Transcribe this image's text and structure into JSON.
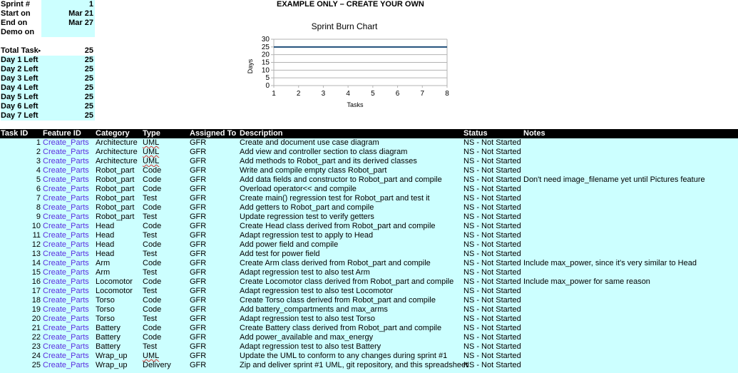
{
  "summary": {
    "sprint_label": "Sprint #",
    "sprint_value": "1",
    "start_label": "Start on",
    "start_value": "Mar 21",
    "end_label": "End on",
    "end_value": "Mar 27",
    "demo_label": "Demo on",
    "demo_value": "",
    "total_label": "Total Task",
    "total_value": "25",
    "days": [
      {
        "label": "Day 1 Left",
        "value": "25"
      },
      {
        "label": "Day 2 Left",
        "value": "25"
      },
      {
        "label": "Day 3 Left",
        "value": "25"
      },
      {
        "label": "Day 4 Left",
        "value": "25"
      },
      {
        "label": "Day 5 Left",
        "value": "25"
      },
      {
        "label": "Day 6 Left",
        "value": "25"
      },
      {
        "label": "Day 7 Left",
        "value": "25"
      }
    ]
  },
  "banner": "EXAMPLE ONLY – CREATE YOUR OWN",
  "chart_data": {
    "type": "line",
    "title": "Sprint Burn Chart",
    "xlabel": "Tasks",
    "ylabel": "Days",
    "x": [
      1,
      2,
      3,
      4,
      5,
      6,
      7,
      8
    ],
    "series": [
      {
        "values": [
          25,
          25,
          25,
          25,
          25,
          25,
          25,
          25
        ],
        "color": "#1f4e79"
      }
    ],
    "xlim": [
      1,
      8
    ],
    "ylim": [
      0,
      30
    ],
    "yticks": [
      0,
      5,
      10,
      15,
      20,
      25,
      30
    ],
    "grid": true
  },
  "table": {
    "headers": {
      "task_id": "Task ID",
      "feature_id": "Feature ID",
      "category": "Category",
      "type": "Type",
      "assigned": "Assigned To",
      "description": "Description",
      "status": "Status",
      "notes": "Notes"
    },
    "rows": [
      {
        "id": "1",
        "feature": "Create_Parts",
        "category": "Architecture",
        "type": "UML",
        "assigned": "GFR",
        "description": "Create and document use case diagram",
        "status": "NS - Not Started",
        "notes": ""
      },
      {
        "id": "2",
        "feature": "Create_Parts",
        "category": "Architecture",
        "type": "UML",
        "assigned": "GFR",
        "description": "Add view and controller section to class diagram",
        "status": "NS - Not Started",
        "notes": ""
      },
      {
        "id": "3",
        "feature": "Create_Parts",
        "category": "Architecture",
        "type": "UML",
        "assigned": "GFR",
        "description": "Add methods to Robot_part and its derived classes",
        "status": "NS - Not Started",
        "notes": ""
      },
      {
        "id": "4",
        "feature": "Create_Parts",
        "category": "Robot_part",
        "type": "Code",
        "assigned": "GFR",
        "description": "Write and compile empty class Robot_part",
        "status": "NS - Not Started",
        "notes": ""
      },
      {
        "id": "5",
        "feature": "Create_Parts",
        "category": "Robot_part",
        "type": "Code",
        "assigned": "GFR",
        "description": "Add data fields and constructor to Robot_part and compile",
        "status": "NS - Not Started",
        "notes": "Don't need image_filename yet until Pictures feature"
      },
      {
        "id": "6",
        "feature": "Create_Parts",
        "category": "Robot_part",
        "type": "Code",
        "assigned": "GFR",
        "description": "Overload operator<< and compile",
        "status": "NS - Not Started",
        "notes": ""
      },
      {
        "id": "7",
        "feature": "Create_Parts",
        "category": "Robot_part",
        "type": "Test",
        "assigned": "GFR",
        "description": "Create main() regression test for Robot_part and test it",
        "status": "NS - Not Started",
        "notes": ""
      },
      {
        "id": "8",
        "feature": "Create_Parts",
        "category": "Robot_part",
        "type": "Code",
        "assigned": "GFR",
        "description": "Add getters to Robot_part and compile",
        "status": "NS - Not Started",
        "notes": ""
      },
      {
        "id": "9",
        "feature": "Create_Parts",
        "category": "Robot_part",
        "type": "Test",
        "assigned": "GFR",
        "description": "Update regression test to verify getters",
        "status": "NS - Not Started",
        "notes": ""
      },
      {
        "id": "10",
        "feature": "Create_Parts",
        "category": "Head",
        "type": "Code",
        "assigned": "GFR",
        "description": "Create Head class derived from Robot_part and compile",
        "status": "NS - Not Started",
        "notes": ""
      },
      {
        "id": "11",
        "feature": "Create_Parts",
        "category": "Head",
        "type": "Test",
        "assigned": "GFR",
        "description": "Adapt regression test to apply to Head",
        "status": "NS - Not Started",
        "notes": ""
      },
      {
        "id": "12",
        "feature": "Create_Parts",
        "category": "Head",
        "type": "Code",
        "assigned": "GFR",
        "description": "Add power field and compile",
        "status": "NS - Not Started",
        "notes": ""
      },
      {
        "id": "13",
        "feature": "Create_Parts",
        "category": "Head",
        "type": "Test",
        "assigned": "GFR",
        "description": "Add test for power field",
        "status": "NS - Not Started",
        "notes": ""
      },
      {
        "id": "14",
        "feature": "Create_Parts",
        "category": "Arm",
        "type": "Code",
        "assigned": "GFR",
        "description": "Create Arm class derived from Robot_part and compile",
        "status": "NS - Not Started",
        "notes": "Include max_power, since it's very similar to Head"
      },
      {
        "id": "15",
        "feature": "Create_Parts",
        "category": "Arm",
        "type": "Test",
        "assigned": "GFR",
        "description": "Adapt regression test to also test Arm",
        "status": "NS - Not Started",
        "notes": ""
      },
      {
        "id": "16",
        "feature": "Create_Parts",
        "category": "Locomotor",
        "type": "Code",
        "assigned": "GFR",
        "description": "Create Locomotor class derived from Robot_part and compile",
        "status": "NS - Not Started",
        "notes": "Include max_power for same reason"
      },
      {
        "id": "17",
        "feature": "Create_Parts",
        "category": "Locomotor",
        "type": "Test",
        "assigned": "GFR",
        "description": "Adapt regression test to also test Locomotor",
        "status": "NS - Not Started",
        "notes": ""
      },
      {
        "id": "18",
        "feature": "Create_Parts",
        "category": "Torso",
        "type": "Code",
        "assigned": "GFR",
        "description": "Create Torso class derived from Robot_part and compile",
        "status": "NS - Not Started",
        "notes": ""
      },
      {
        "id": "19",
        "feature": "Create_Parts",
        "category": "Torso",
        "type": "Code",
        "assigned": "GFR",
        "description": "Add battery_compartments and max_arms",
        "status": "NS - Not Started",
        "notes": ""
      },
      {
        "id": "20",
        "feature": "Create_Parts",
        "category": "Torso",
        "type": "Test",
        "assigned": "GFR",
        "description": "Adapt regression test to also test Torso",
        "status": "NS - Not Started",
        "notes": ""
      },
      {
        "id": "21",
        "feature": "Create_Parts",
        "category": "Battery",
        "type": "Code",
        "assigned": "GFR",
        "description": "Create Battery class derived from Robot_part and compile",
        "status": "NS - Not Started",
        "notes": ""
      },
      {
        "id": "22",
        "feature": "Create_Parts",
        "category": "Battery",
        "type": "Code",
        "assigned": "GFR",
        "description": "Add power_available and max_energy",
        "status": "NS - Not Started",
        "notes": ""
      },
      {
        "id": "23",
        "feature": "Create_Parts",
        "category": "Battery",
        "type": "Test",
        "assigned": "GFR",
        "description": "Adapt regression test to also test Battery",
        "status": "NS - Not Started",
        "notes": ""
      },
      {
        "id": "24",
        "feature": "Create_Parts",
        "category": "Wrap_up",
        "type": "UML",
        "assigned": "GFR",
        "description": "Update the UML to conform to any changes during sprint #1",
        "status": "NS - Not Started",
        "notes": ""
      },
      {
        "id": "25",
        "feature": "Create_Parts",
        "category": "Wrap_up",
        "type": "Delivery",
        "assigned": "GFR",
        "description": "Zip and deliver sprint #1 UML, git repository, and this spreadsheet",
        "status": "NS - Not Started",
        "notes": ""
      }
    ]
  }
}
